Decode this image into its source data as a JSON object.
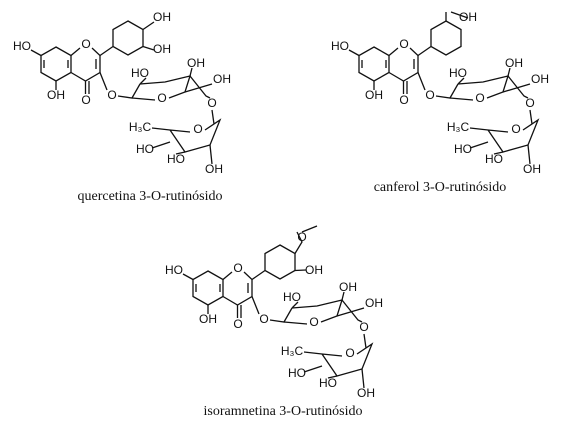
{
  "molecules": [
    {
      "caption": "quercetina 3-O-rutinósido",
      "atoms": [
        "HO",
        "O",
        "OH",
        "O",
        "OH",
        "OH",
        "O",
        "HO",
        "OH",
        "OH",
        "O",
        "O",
        "H₃C",
        "O",
        "HO",
        "HO",
        "OH"
      ]
    },
    {
      "caption": "canferol 3-O-rutinósido",
      "atoms": [
        "HO",
        "O",
        "OH",
        "O",
        "OH",
        "O",
        "HO",
        "OH",
        "OH",
        "O",
        "O",
        "H₃C",
        "O",
        "HO",
        "HO",
        "OH"
      ]
    },
    {
      "caption": "isoramnetina 3-O-rutinósido",
      "atoms": [
        "HO",
        "O",
        "OH",
        "O",
        "O",
        "OH",
        "O",
        "HO",
        "OH",
        "OH",
        "O",
        "O",
        "H₃C",
        "O",
        "HO",
        "HO",
        "OH"
      ]
    }
  ]
}
